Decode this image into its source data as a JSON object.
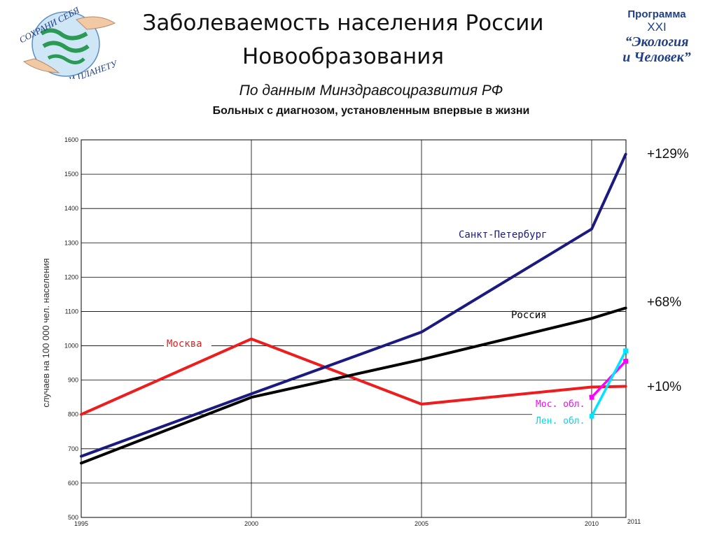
{
  "header": {
    "title_line1": "Заболеваемость населения России",
    "title_line2": "Новообразования",
    "subtitle": "По данным Минздравсоцразвития РФ",
    "caption": "Больных с диагнозом, установленным впервые в жизни"
  },
  "logo_left": {
    "text_top": "СОХРАНИ СЕБЯ",
    "text_bottom": "И ПЛАНЕТУ"
  },
  "logo_right": {
    "line1": "Программа",
    "line2": "XXI",
    "line3": "“Экология",
    "line4": "и Человек”"
  },
  "colors": {
    "spb": "#1a1a80",
    "russia": "#000000",
    "moscow": "#ee1c1c",
    "mos_obl": "#ff00ff",
    "len_obl": "#00e5ff"
  },
  "chart_data": {
    "type": "line",
    "ylabel": "случаев на 100 000 чел. населения",
    "ylim": [
      500,
      1600
    ],
    "xlim": [
      1995,
      2011
    ],
    "grid": true,
    "y_ticks": [
      "500",
      "600",
      "700",
      "800",
      "900",
      "1000",
      "1100",
      "1200",
      "1300",
      "1400",
      "1500",
      "1600"
    ],
    "x_ticks": [
      "1995",
      "2000",
      "2005",
      "2010"
    ],
    "x_extra_tick": "2011",
    "series": [
      {
        "name": "Санкт-Петербург",
        "x": [
          1995,
          2000,
          2005,
          2010,
          2011
        ],
        "y": [
          678,
          860,
          1040,
          1340,
          1558
        ]
      },
      {
        "name": "Россия",
        "x": [
          1995,
          2000,
          2005,
          2010,
          2011
        ],
        "y": [
          658,
          850,
          960,
          1080,
          1110
        ]
      },
      {
        "name": "Москва",
        "x": [
          1995,
          2000,
          2005,
          2010,
          2011
        ],
        "y": [
          800,
          1020,
          830,
          880,
          882
        ]
      },
      {
        "name": "Мос. обл.",
        "x": [
          2010,
          2011
        ],
        "y": [
          850,
          955
        ]
      },
      {
        "name": "Лен. обл.",
        "x": [
          2010,
          2011
        ],
        "y": [
          795,
          985
        ]
      }
    ],
    "annotations": [
      "+129%",
      "+68%",
      "+10%"
    ]
  }
}
